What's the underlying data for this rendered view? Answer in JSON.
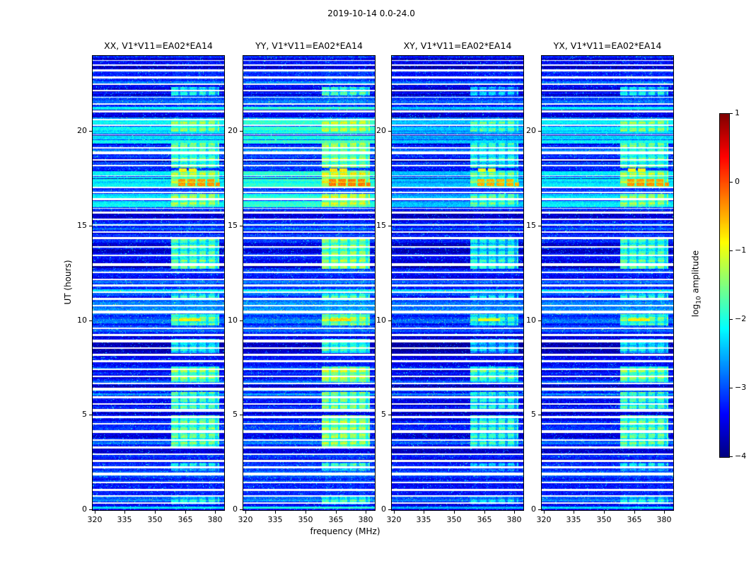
{
  "figure": {
    "title": "2019-10-14 0.0-24.0",
    "xlabel": "frequency (MHz)",
    "ylabel": "UT (hours)"
  },
  "panels": [
    {
      "title": "XX, V1*V11=EA02*EA14",
      "level_offset": 0.0
    },
    {
      "title": "YY, V1*V11=EA02*EA14",
      "level_offset": 0.25
    },
    {
      "title": "XY, V1*V11=EA02*EA14",
      "level_offset": -0.3
    },
    {
      "title": "YX, V1*V11=EA02*EA14",
      "level_offset": -0.05
    }
  ],
  "axes": {
    "x_ticks": [
      320,
      335,
      350,
      365,
      380
    ],
    "x_tick_labels": [
      "320",
      "335",
      "350",
      "365",
      "380"
    ],
    "y_ticks": [
      0,
      5,
      10,
      15,
      20
    ],
    "y_tick_labels": [
      "0",
      "5",
      "10",
      "15",
      "20"
    ],
    "x_range": [
      319,
      384.5
    ],
    "y_range": [
      0,
      24
    ]
  },
  "colorbar": {
    "ticks": [
      1,
      0,
      -1,
      -2,
      -3,
      -4
    ],
    "tick_labels": [
      "1",
      "0",
      "−1",
      "−2",
      "−3",
      "−4"
    ],
    "range": [
      -4,
      1
    ],
    "label_prefix": "log",
    "label_sub": "10",
    "label_rest": " amplitude"
  },
  "chart_data": {
    "type": "heatmap",
    "title": "2019-10-14 0.0-24.0",
    "subplot_titles": [
      "XX, V1*V11=EA02*EA14",
      "YY, V1*V11=EA02*EA14",
      "XY, V1*V11=EA02*EA14",
      "YX, V1*V11=EA02*EA14"
    ],
    "xlabel": "frequency (MHz)",
    "ylabel": "UT (hours)",
    "colorbar_label": "log10 amplitude",
    "colormap": "jet",
    "x_range": [
      319,
      384.5
    ],
    "y_range": [
      0,
      24
    ],
    "value_range": [
      -4,
      1
    ],
    "x_ticks": [
      320,
      335,
      350,
      365,
      380
    ],
    "y_ticks": [
      0,
      5,
      10,
      15,
      20
    ],
    "colorbar_ticks": [
      1,
      0,
      -1,
      -2,
      -3,
      -4
    ],
    "background_level": -3.45,
    "features": {
      "flagged_times": [
        [
          0.32,
          0.42
        ],
        [
          0.72,
          0.8
        ],
        [
          1.02,
          1.14
        ],
        [
          1.42,
          1.5
        ],
        [
          1.82,
          1.97
        ],
        [
          2.22,
          2.3
        ],
        [
          2.56,
          2.66
        ],
        [
          2.92,
          3.0
        ],
        [
          3.26,
          3.38
        ],
        [
          3.66,
          3.74
        ],
        [
          4.06,
          4.21
        ],
        [
          4.51,
          4.59
        ],
        [
          4.86,
          4.96
        ],
        [
          5.21,
          5.33
        ],
        [
          5.56,
          5.64
        ],
        [
          5.91,
          6.01
        ],
        [
          6.31,
          6.46
        ],
        [
          6.66,
          6.74
        ],
        [
          7.01,
          7.11
        ],
        [
          7.41,
          7.49
        ],
        [
          7.81,
          7.93
        ],
        [
          8.16,
          8.26
        ],
        [
          8.51,
          8.59
        ],
        [
          8.86,
          9.01
        ],
        [
          9.21,
          9.31
        ],
        [
          9.56,
          9.64
        ],
        [
          10.41,
          10.53
        ],
        [
          10.76,
          10.84
        ],
        [
          11.11,
          11.21
        ],
        [
          11.46,
          11.54
        ],
        [
          11.81,
          11.93
        ],
        [
          12.16,
          12.24
        ],
        [
          12.51,
          12.61
        ],
        [
          12.91,
          13.06
        ],
        [
          13.41,
          13.49
        ],
        [
          13.86,
          13.96
        ],
        [
          14.31,
          14.43
        ],
        [
          14.66,
          14.74
        ],
        [
          15.01,
          15.11
        ],
        [
          15.31,
          15.39
        ],
        [
          15.66,
          15.78
        ],
        [
          15.92,
          15.98
        ],
        [
          16.38,
          16.48
        ],
        [
          16.76,
          16.84
        ],
        [
          17.02,
          17.08
        ],
        [
          17.64,
          17.69
        ],
        [
          18.15,
          18.25
        ],
        [
          18.48,
          18.56
        ],
        [
          18.82,
          18.94
        ],
        [
          19.12,
          19.18
        ],
        [
          19.8,
          19.86
        ],
        [
          20.3,
          20.36
        ],
        [
          20.6,
          20.66
        ],
        [
          21.02,
          21.12
        ],
        [
          21.42,
          21.5
        ],
        [
          21.78,
          21.84
        ],
        [
          22.12,
          22.22
        ],
        [
          22.47,
          22.53
        ],
        [
          22.82,
          22.9
        ],
        [
          23.18,
          23.28
        ],
        [
          23.48,
          23.54
        ],
        [
          23.72,
          23.78
        ]
      ],
      "high_rows": [
        [
          0.06,
          0.18
        ],
        [
          16.0,
          16.35
        ],
        [
          16.5,
          16.72
        ],
        [
          17.1,
          17.5
        ],
        [
          17.52,
          17.62
        ],
        [
          17.7,
          17.92
        ],
        [
          19.35,
          19.55
        ],
        [
          19.6,
          19.78
        ],
        [
          19.9,
          20.28
        ],
        [
          20.38,
          20.58
        ],
        [
          21.15,
          21.3
        ]
      ],
      "high_row_level": -2.2,
      "noisy_times": [
        [
          0.0,
          2.1,
          0.3
        ],
        [
          9.65,
          12.0,
          0.45
        ],
        [
          18.6,
          19.5,
          0.25
        ],
        [
          21.3,
          21.9,
          0.3
        ]
      ],
      "rfi_freq_range": [
        358,
        382
      ],
      "rfi_clusters": [
        [
          0.3,
          0.72,
          -2.1
        ],
        [
          2.08,
          2.5,
          -2.2
        ],
        [
          3.35,
          5.0,
          -1.65
        ],
        [
          5.3,
          6.25,
          -1.8
        ],
        [
          6.75,
          7.6,
          -1.45
        ],
        [
          8.3,
          9.05,
          -1.95
        ],
        [
          9.75,
          10.35,
          -1.55
        ],
        [
          11.05,
          11.45,
          -2.05
        ],
        [
          12.75,
          14.35,
          -1.7
        ],
        [
          16.05,
          16.7,
          -1.45
        ],
        [
          17.0,
          17.95,
          -1.3
        ],
        [
          18.1,
          19.5,
          -1.65
        ],
        [
          20.0,
          20.65,
          -1.5
        ],
        [
          21.9,
          22.35,
          -2.1
        ]
      ],
      "strong_blocks": [
        {
          "t": [
            17.12,
            17.3
          ],
          "level": -0.35,
          "freq_segments": [
            [
              361.5,
              365.3
            ],
            [
              366.3,
              370.1
            ],
            [
              371.1,
              374.9
            ],
            [
              375.9,
              379.7
            ],
            [
              380.3,
              382.3
            ]
          ]
        },
        {
          "t": [
            17.33,
            17.48
          ],
          "level": -0.4,
          "freq_segments": [
            [
              361.5,
              365.3
            ],
            [
              366.3,
              370.1
            ],
            [
              371.1,
              374.9
            ],
            [
              375.9,
              379.7
            ]
          ]
        },
        {
          "t": [
            17.88,
            18.06
          ],
          "level": -0.85,
          "freq_segments": [
            [
              362.0,
              365.8
            ],
            [
              366.8,
              370.6
            ]
          ]
        },
        {
          "t": [
            10.0,
            10.12
          ],
          "level": -0.8,
          "freq_segments": [
            [
              362.0,
              373.0
            ]
          ]
        }
      ]
    }
  }
}
